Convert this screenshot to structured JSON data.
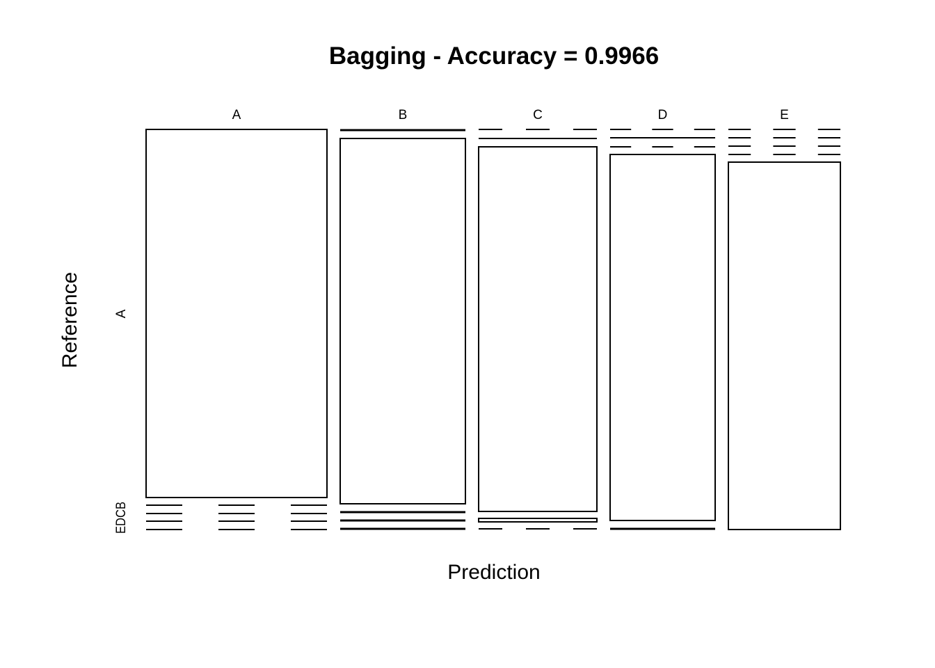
{
  "chart_data": {
    "type": "mosaic",
    "title": "Bagging - Accuracy = 0.9966",
    "xlabel": "Prediction",
    "ylabel": "Reference",
    "x_categories": [
      "A",
      "B",
      "C",
      "D",
      "E"
    ],
    "y_tick_labels": {
      "top": "A",
      "bottom": "EDCB"
    },
    "y_categories": [
      "A",
      "B",
      "C",
      "D",
      "E"
    ],
    "column_fractions": [
      0.3,
      0.205,
      0.195,
      0.175,
      0.185
    ],
    "diagonal_fraction": [
      0.9999,
      0.995,
      0.993,
      0.998,
      0.999
    ],
    "line_color": "#000000",
    "background": "#ffffff"
  }
}
